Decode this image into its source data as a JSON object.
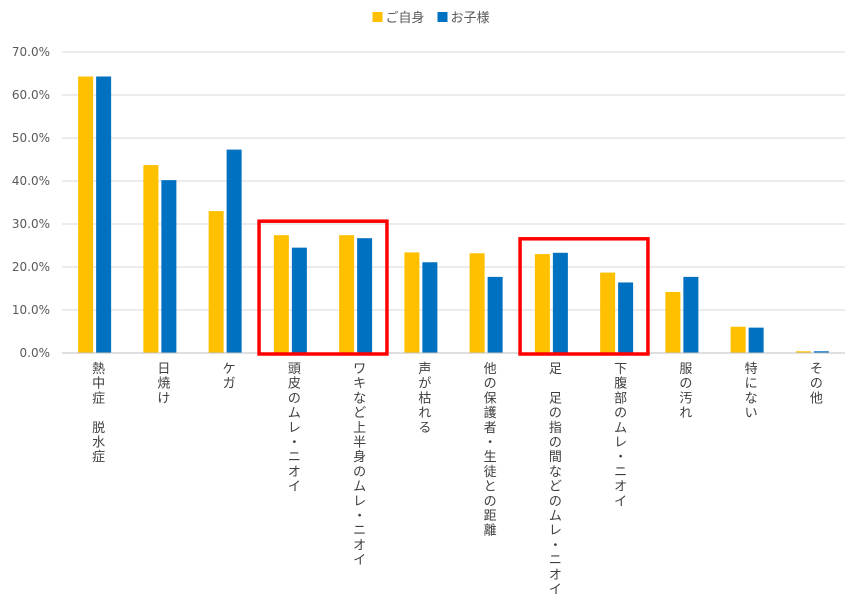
{
  "chart_data": {
    "type": "bar",
    "title": "",
    "xlabel": "",
    "ylabel": "",
    "ylim": [
      0,
      0.7
    ],
    "y_ticks": [
      0,
      0.1,
      0.2,
      0.3,
      0.4,
      0.5,
      0.6,
      0.7
    ],
    "y_tick_labels": [
      "0.0%",
      "10.0%",
      "20.0%",
      "30.0%",
      "40.0%",
      "50.0%",
      "60.0%",
      "70.0%"
    ],
    "grid": true,
    "legend_position": "top-center",
    "categories": [
      "熱中症 脱水症",
      "日焼け",
      "ケガ",
      "頭皮のムレ・ニオイ",
      "ワキなど上半身のムレ・ニオイ",
      "声が枯れる",
      "他の保護者・生徒との距離",
      "足 足の指の間などのムレ・ニオイ",
      "下腹部のムレ・ニオイ",
      "服の汚れ",
      "特にない",
      "その他"
    ],
    "series": [
      {
        "name": "ご自身",
        "color": "#FFC000",
        "values": [
          0.643,
          0.437,
          0.33,
          0.274,
          0.274,
          0.234,
          0.232,
          0.23,
          0.187,
          0.142,
          0.061,
          0.004
        ]
      },
      {
        "name": "お子様",
        "color": "#0070C0",
        "values": [
          0.643,
          0.402,
          0.473,
          0.245,
          0.267,
          0.211,
          0.177,
          0.233,
          0.164,
          0.177,
          0.059,
          0.004
        ]
      }
    ],
    "highlights": [
      {
        "label": "red-box-scalp-underarm",
        "from_index": 3,
        "to_index": 4,
        "color": "#FF0000"
      },
      {
        "label": "red-box-feet-lower-abdomen",
        "from_index": 7,
        "to_index": 8,
        "color": "#FF0000"
      }
    ]
  }
}
